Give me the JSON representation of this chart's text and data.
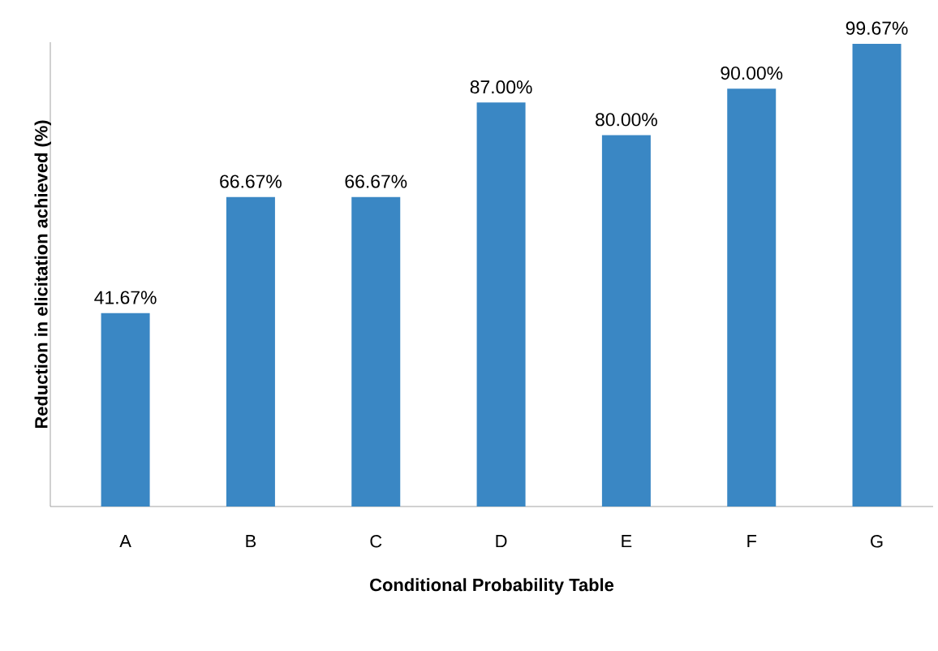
{
  "chart_data": {
    "type": "bar",
    "xlabel": "Conditional Probability Table",
    "ylabel": "Reduction in elicitation achieved (%)",
    "categories": [
      "A",
      "B",
      "C",
      "D",
      "E",
      "F",
      "G"
    ],
    "values": [
      41.67,
      66.67,
      66.67,
      87.0,
      80.0,
      90.0,
      99.67
    ],
    "value_labels": [
      "41.67%",
      "66.67%",
      "66.67%",
      "87.00%",
      "80.00%",
      "90.00%",
      "99.67%"
    ],
    "color": "#3a87c4",
    "ylim": [
      0,
      100
    ]
  }
}
